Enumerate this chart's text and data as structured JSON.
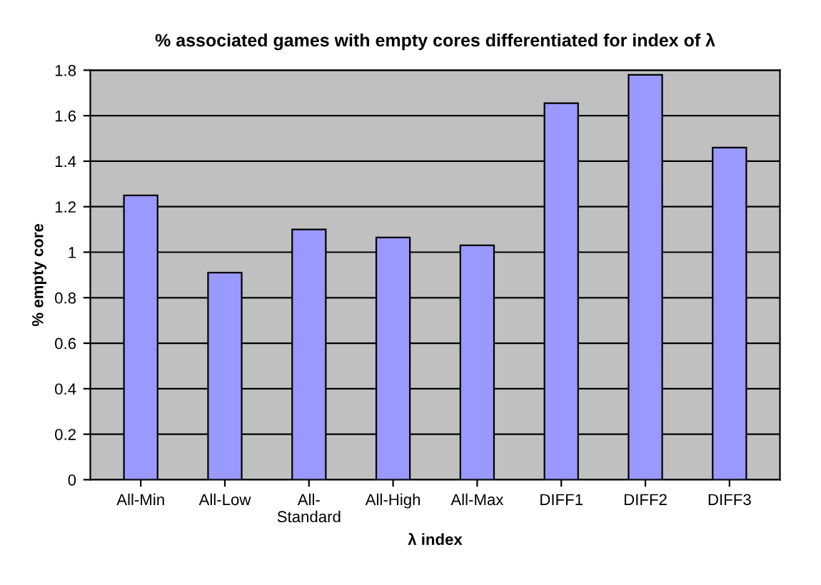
{
  "chart_data": {
    "type": "bar",
    "title": "% associated games with empty cores differentiated for index of λ",
    "xlabel": "λ index",
    "ylabel": "% empty core",
    "categories": [
      "All-Min",
      "All-Low",
      "All-\nStandard",
      "All-High",
      "All-Max",
      "DIFF1",
      "DIFF2",
      "DIFF3"
    ],
    "values": [
      1.25,
      0.91,
      1.1,
      1.065,
      1.03,
      1.655,
      1.78,
      1.46
    ],
    "color": "#9999ff",
    "ylim": [
      0,
      1.8
    ],
    "yticks": [
      0,
      0.2,
      0.4,
      0.6,
      0.8,
      1,
      1.2,
      1.4,
      1.6,
      1.8
    ],
    "grid": "y"
  }
}
